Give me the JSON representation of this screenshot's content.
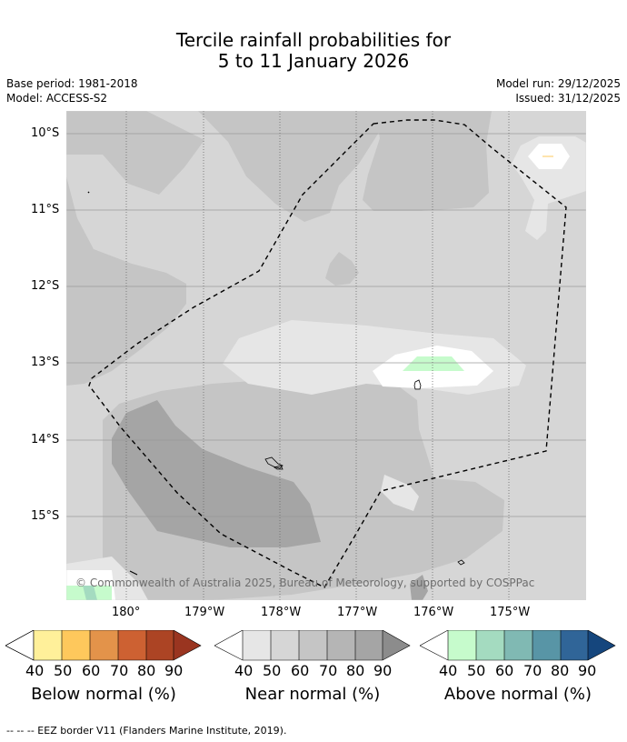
{
  "header": {
    "title_line1": "Tercile rainfall probabilities for",
    "title_line2": "5 to 11 January 2026",
    "base_period": "Base period: 1981-2018",
    "model": "Model: ACCESS-S2",
    "model_run": "Model run: 29/12/2025",
    "issued": "Issued: 31/12/2025"
  },
  "map": {
    "lat_labels": [
      "10°S",
      "11°S",
      "12°S",
      "13°S",
      "14°S",
      "15°S"
    ],
    "lon_labels": [
      "180°",
      "179°W",
      "178°W",
      "177°W",
      "176°W",
      "175°W"
    ],
    "copyright": "© Commonwealth of Australia 2025, Bureau of Meteorology, supported by COSPPac"
  },
  "legend": {
    "ticks": [
      "40",
      "50",
      "60",
      "70",
      "80",
      "90"
    ],
    "below": {
      "name": "Below normal (%)",
      "colors": [
        "#fff09a",
        "#fec85c",
        "#e3934a",
        "#cd6132",
        "#ac4424",
        "#9a3520"
      ]
    },
    "near": {
      "name": "Near normal (%)",
      "colors": [
        "#e6e6e6",
        "#d6d6d6",
        "#c5c5c5",
        "#b5b5b5",
        "#a5a5a5",
        "#8c8c8c"
      ]
    },
    "above": {
      "name": "Above normal (%)",
      "colors": [
        "#c6fbcc",
        "#a4dbc0",
        "#80b9b3",
        "#5895a6",
        "#306598",
        "#15467d"
      ]
    }
  },
  "footer": {
    "eez_note": "--  --  -- EEZ border V11 (Flanders Marine Institute, 2019)."
  }
}
